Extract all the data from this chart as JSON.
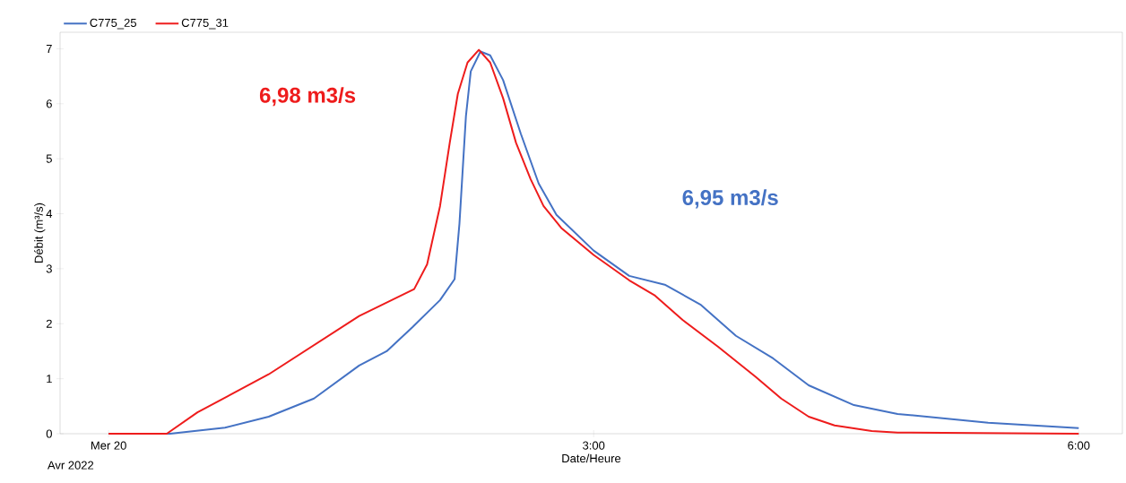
{
  "chart_data": {
    "type": "line",
    "xlabel": "Date/Heure",
    "ylabel": "Débit (m³/s)",
    "xlim": [
      -0.3,
      6.27
    ],
    "ylim": [
      0,
      7.3
    ],
    "xticks": [
      {
        "value": 0,
        "label": "Mer 20"
      },
      {
        "value": 3,
        "label": "3:00"
      },
      {
        "value": 6,
        "label": "6:00"
      }
    ],
    "yticks": [
      0,
      1,
      2,
      3,
      4,
      5,
      6,
      7
    ],
    "grid": false,
    "legend": "top left",
    "marker": "none",
    "line_style": "solid",
    "annotations": [
      "6,95 m3/s",
      "6,98 m3/s",
      "Avr 2022"
    ],
    "series": [
      {
        "name": "C775_25",
        "color": "#4472c4",
        "x": [
          0,
          0.38,
          0.72,
          0.99,
          1.27,
          1.55,
          1.72,
          1.88,
          2.05,
          2.14,
          2.17,
          2.21,
          2.24,
          2.3,
          2.36,
          2.44,
          2.55,
          2.66,
          2.77,
          3.0,
          3.22,
          3.44,
          3.66,
          3.88,
          4.11,
          4.33,
          4.61,
          4.88,
          5.44,
          6.0
        ],
        "values": [
          0,
          0,
          0.11,
          0.31,
          0.64,
          1.24,
          1.5,
          1.94,
          2.43,
          2.81,
          3.82,
          5.77,
          6.59,
          6.95,
          6.88,
          6.43,
          5.45,
          4.55,
          3.98,
          3.33,
          2.87,
          2.71,
          2.35,
          1.78,
          1.37,
          0.88,
          0.52,
          0.36,
          0.2,
          0.1
        ]
      },
      {
        "name": "C775_31",
        "color": "#ee1c1c",
        "x": [
          0,
          0.24,
          0.36,
          0.55,
          0.99,
          1.55,
          1.89,
          1.97,
          2.05,
          2.11,
          2.16,
          2.22,
          2.29,
          2.36,
          2.44,
          2.52,
          2.61,
          2.69,
          2.8,
          3.0,
          3.22,
          3.38,
          3.55,
          3.77,
          4.0,
          4.16,
          4.33,
          4.49,
          4.72,
          4.88,
          6.0
        ],
        "values": [
          0,
          0,
          0,
          0.39,
          1.08,
          2.14,
          2.63,
          3.08,
          4.14,
          5.29,
          6.18,
          6.75,
          6.98,
          6.75,
          6.1,
          5.29,
          4.63,
          4.14,
          3.74,
          3.25,
          2.79,
          2.51,
          2.07,
          1.58,
          1.04,
          0.64,
          0.31,
          0.15,
          0.05,
          0.02,
          0
        ]
      }
    ]
  }
}
